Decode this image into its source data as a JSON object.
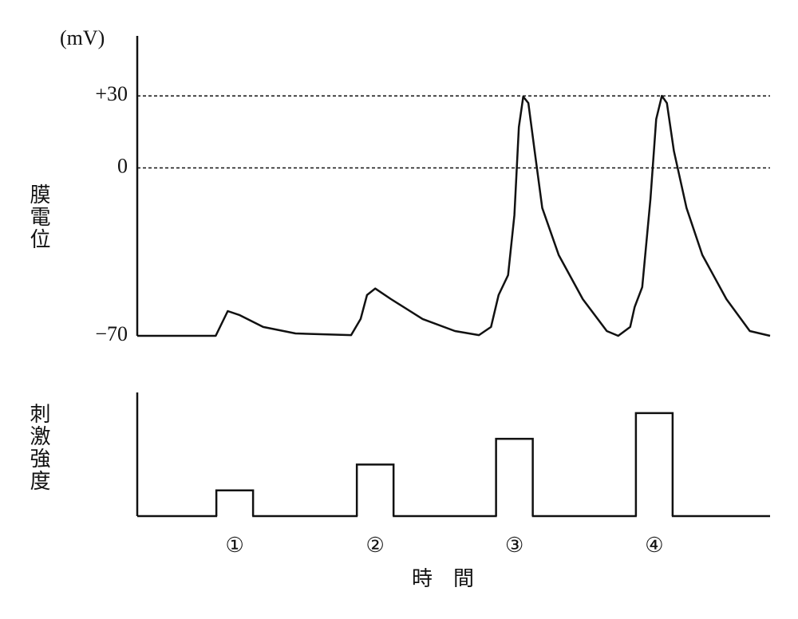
{
  "chart_data": [
    {
      "type": "line",
      "y_unit": "(mV)",
      "ylabel": "膜電位",
      "xlim": [
        0,
        100
      ],
      "ylim": [
        -70,
        55
      ],
      "yticks": [
        {
          "value": 30,
          "label": "+30"
        },
        0,
        {
          "value": -70,
          "label": "−70"
        }
      ],
      "grid": true,
      "color": "#111",
      "x": [
        0,
        12.4,
        14.3,
        16.1,
        19.9,
        25,
        33.8,
        35.3,
        36.3,
        37.6,
        40.1,
        45.1,
        50.2,
        54,
        55.9,
        57.1,
        58.6,
        59.6,
        60.3,
        61,
        61.8,
        62.8,
        64,
        66.6,
        70.4,
        74.2,
        76,
        77.9,
        78.6,
        79.8,
        81.1,
        82,
        82.9,
        83.7,
        84.8,
        86.8,
        89.3,
        93.1,
        96.8,
        100
      ],
      "series": [
        {
          "values": [
            -70,
            -70,
            -59.7,
            -61.3,
            -66.3,
            -69,
            -69.7,
            -63,
            -53,
            -50.3,
            -54.7,
            -63,
            -68,
            -69.7,
            -66.3,
            -53,
            -44.7,
            -19.7,
            17,
            29.7,
            27,
            7,
            -16.7,
            -36.3,
            -54.7,
            -68,
            -70,
            -66.3,
            -58,
            -49.7,
            -13,
            20.3,
            30,
            27,
            7,
            -16.7,
            -36.3,
            -54.7,
            -68,
            -70
          ]
        }
      ]
    },
    {
      "type": "bar",
      "ylabel": "刺激強度",
      "xlabel": "時　間",
      "categories": [
        "①",
        "②",
        "③",
        "④"
      ],
      "x": [
        15.4,
        37.6,
        59.6,
        81.7
      ],
      "values": [
        1,
        2,
        3,
        4
      ],
      "xlim": [
        0,
        100
      ],
      "ylim": [
        0,
        4.8
      ],
      "color": "#111"
    }
  ]
}
